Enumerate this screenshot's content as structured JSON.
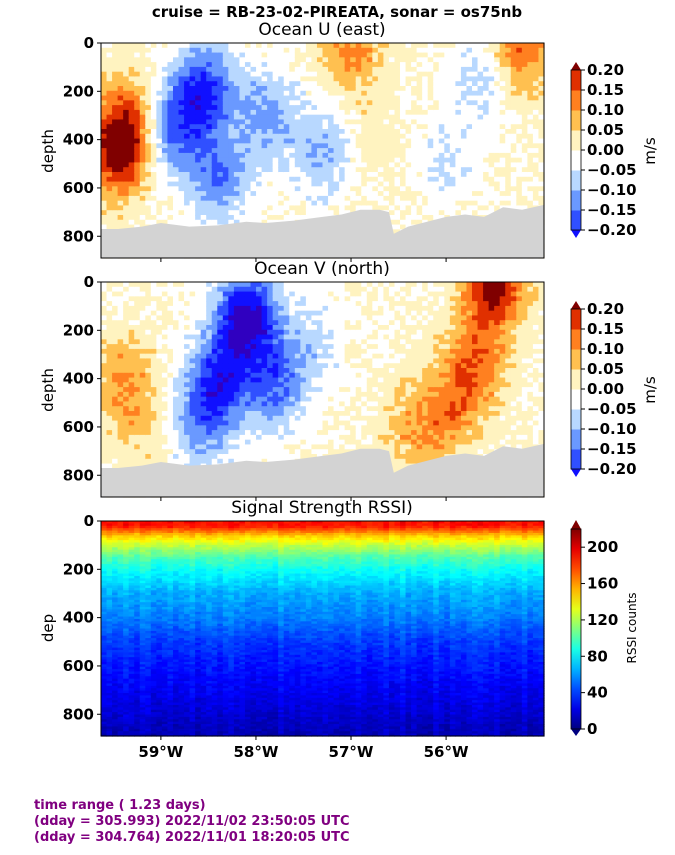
{
  "suptitle": "cruise = RB-23-02-PIREATA,  sonar = os75nb",
  "footer": {
    "line1": "time range ( 1.23 days)",
    "line2": "(dday = 305.993) 2022/11/02 23:50:05 UTC",
    "line3": "(dday = 304.764) 2022/11/01 18:20:05 UTC"
  },
  "colors": {
    "land_gray": "#d3d3d3",
    "footer": "#800080",
    "velocity_levels": [
      "#1010ff",
      "#3050ff",
      "#6a99ff",
      "#b8d8ff",
      "#ffffff",
      "#fff3c0",
      "#ffc050",
      "#ff8020",
      "#e03000",
      "#800000"
    ],
    "velocity_under": "#3000c0"
  },
  "chart_data": [
    {
      "type": "heatmap",
      "title": "Ocean U (east)",
      "ylabel": "depth",
      "colorbar_label": "m/s",
      "x_ticks": [
        "59°W",
        "58°W",
        "57°W",
        "56°W"
      ],
      "x_tick_values": [
        -59,
        -58,
        -57,
        -56
      ],
      "xlim": [
        -59.63,
        -54.97
      ],
      "y_ticks": [
        "0",
        "200",
        "400",
        "600",
        "800"
      ],
      "y_tick_values": [
        0,
        200,
        400,
        600,
        800
      ],
      "ylim": [
        890,
        0
      ],
      "colorbar_ticks": [
        "0.20",
        "0.15",
        "0.10",
        "0.05",
        "0.00",
        "−0.05",
        "−0.10",
        "−0.15",
        "−0.20"
      ],
      "colorbar_values": [
        0.2,
        0.15,
        0.1,
        0.05,
        0.0,
        -0.05,
        -0.1,
        -0.15,
        -0.2
      ],
      "vmin": -0.2,
      "vmax": 0.2,
      "bottom_depth": {
        "lon": [
          -59.63,
          -59.45,
          -59.2,
          -59.0,
          -58.7,
          -58.4,
          -58.1,
          -57.9,
          -57.6,
          -57.3,
          -57.1,
          -56.9,
          -56.7,
          -56.6,
          -56.55,
          -56.4,
          -56.2,
          -56.0,
          -55.8,
          -55.6,
          -55.4,
          -55.2,
          -54.97
        ],
        "depth": [
          770,
          770,
          760,
          745,
          760,
          755,
          740,
          745,
          735,
          720,
          710,
          690,
          690,
          700,
          790,
          760,
          740,
          720,
          710,
          720,
          680,
          690,
          670
        ]
      },
      "features": [
        {
          "lon": -59.45,
          "depth": 450,
          "value": 0.22
        },
        {
          "lon": -59.3,
          "depth": 300,
          "value": 0.12
        },
        {
          "lon": -58.9,
          "depth": 350,
          "value": -0.16
        },
        {
          "lon": -58.55,
          "depth": 200,
          "value": -0.2
        },
        {
          "lon": -58.4,
          "depth": 550,
          "value": -0.14
        },
        {
          "lon": -57.9,
          "depth": 300,
          "value": -0.12
        },
        {
          "lon": -57.3,
          "depth": 450,
          "value": -0.1
        },
        {
          "lon": -56.8,
          "depth": 400,
          "value": 0.03
        },
        {
          "lon": -56.0,
          "depth": 500,
          "value": -0.05
        },
        {
          "lon": -55.6,
          "depth": 150,
          "value": -0.07
        },
        {
          "lon": -55.2,
          "depth": 20,
          "value": 0.15
        },
        {
          "lon": -57.0,
          "depth": 15,
          "value": 0.12
        }
      ]
    },
    {
      "type": "heatmap",
      "title": "Ocean V (north)",
      "ylabel": "depth",
      "colorbar_label": "m/s",
      "x_ticks": [
        "59°W",
        "58°W",
        "57°W",
        "56°W"
      ],
      "x_tick_values": [
        -59,
        -58,
        -57,
        -56
      ],
      "xlim": [
        -59.63,
        -54.97
      ],
      "y_ticks": [
        "0",
        "200",
        "400",
        "600",
        "800"
      ],
      "y_tick_values": [
        0,
        200,
        400,
        600,
        800
      ],
      "ylim": [
        890,
        0
      ],
      "colorbar_ticks": [
        "0.20",
        "0.15",
        "0.10",
        "0.05",
        "0.00",
        "−0.05",
        "−0.10",
        "−0.15",
        "−0.20"
      ],
      "colorbar_values": [
        0.2,
        0.15,
        0.1,
        0.05,
        0.0,
        -0.05,
        -0.1,
        -0.15,
        -0.2
      ],
      "vmin": -0.2,
      "vmax": 0.2,
      "bottom_depth": {
        "lon": [
          -59.63,
          -59.45,
          -59.2,
          -59.0,
          -58.7,
          -58.4,
          -58.1,
          -57.9,
          -57.6,
          -57.3,
          -57.1,
          -56.9,
          -56.7,
          -56.6,
          -56.55,
          -56.4,
          -56.2,
          -56.0,
          -55.8,
          -55.6,
          -55.4,
          -55.2,
          -54.97
        ],
        "depth": [
          770,
          770,
          760,
          745,
          760,
          755,
          740,
          745,
          735,
          720,
          710,
          690,
          690,
          700,
          790,
          760,
          740,
          720,
          710,
          720,
          680,
          690,
          670
        ]
      },
      "features": [
        {
          "lon": -58.1,
          "depth": 150,
          "value": -0.28
        },
        {
          "lon": -58.4,
          "depth": 420,
          "value": -0.2
        },
        {
          "lon": -57.8,
          "depth": 420,
          "value": -0.15
        },
        {
          "lon": -58.6,
          "depth": 600,
          "value": -0.1
        },
        {
          "lon": -57.4,
          "depth": 250,
          "value": -0.06
        },
        {
          "lon": -59.4,
          "depth": 400,
          "value": 0.1
        },
        {
          "lon": -59.2,
          "depth": 600,
          "value": 0.05
        },
        {
          "lon": -55.7,
          "depth": 350,
          "value": 0.14
        },
        {
          "lon": -56.0,
          "depth": 550,
          "value": 0.11
        },
        {
          "lon": -55.5,
          "depth": 10,
          "value": 0.24
        },
        {
          "lon": -56.4,
          "depth": 600,
          "value": 0.07
        }
      ]
    },
    {
      "type": "heatmap",
      "title": "Signal Strength RSSI)",
      "ylabel": "dep",
      "colorbar_label": "RSSI counts",
      "x_ticks": [
        "59°W",
        "58°W",
        "57°W",
        "56°W"
      ],
      "x_tick_values": [
        -59,
        -58,
        -57,
        -56
      ],
      "xlim": [
        -59.63,
        -54.97
      ],
      "y_ticks": [
        "0",
        "200",
        "400",
        "600",
        "800"
      ],
      "y_tick_values": [
        0,
        200,
        400,
        600,
        800
      ],
      "ylim": [
        890,
        0
      ],
      "colorbar_ticks": [
        "200",
        "160",
        "120",
        "80",
        "40",
        "0"
      ],
      "colorbar_values": [
        200,
        160,
        120,
        80,
        40,
        0
      ],
      "vmin": 0,
      "vmax": 220,
      "profile": {
        "depth": [
          20,
          60,
          100,
          150,
          200,
          300,
          400,
          500,
          600,
          700,
          800,
          880
        ],
        "rssi": [
          190,
          150,
          125,
          100,
          85,
          65,
          55,
          40,
          32,
          25,
          18,
          12
        ]
      }
    }
  ]
}
